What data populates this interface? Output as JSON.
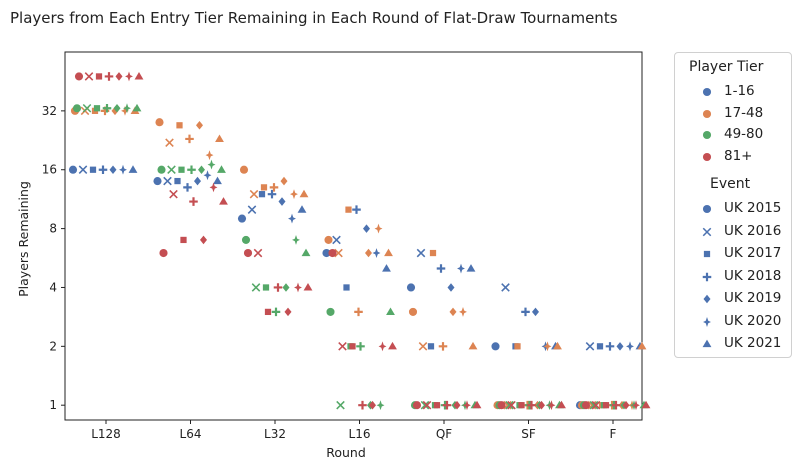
{
  "chart_data": {
    "type": "scatter",
    "title": "Players from Each Entry Tier Remaining in Each Round of Flat-Draw Tournaments",
    "xlabel": "Round",
    "ylabel": "Players Remaining",
    "y_scale": "log2",
    "ylim": [
      0.84,
      64
    ],
    "yticks": [
      1,
      2,
      4,
      8,
      16,
      32
    ],
    "grid": false,
    "legend_placement": "outside-right",
    "categories": [
      "L128",
      "L64",
      "L32",
      "L16",
      "QF",
      "SF",
      "F"
    ],
    "hue_title": "Player Tier",
    "style_title": "Event",
    "tiers": [
      {
        "name": "1-16",
        "color": "#4c72b0"
      },
      {
        "name": "17-48",
        "color": "#dd8452"
      },
      {
        "name": "49-80",
        "color": "#55a868"
      },
      {
        "name": "81+",
        "color": "#c44e52"
      }
    ],
    "events": [
      {
        "name": "UK 2015",
        "marker": "circle"
      },
      {
        "name": "UK 2016",
        "marker": "x"
      },
      {
        "name": "UK 2017",
        "marker": "square"
      },
      {
        "name": "UK 2018",
        "marker": "plus"
      },
      {
        "name": "UK 2019",
        "marker": "diamond"
      },
      {
        "name": "UK 2020",
        "marker": "star4"
      },
      {
        "name": "UK 2021",
        "marker": "triangle"
      }
    ],
    "series": [
      {
        "tier": "1-16",
        "event": "UK 2015",
        "values": [
          16,
          14,
          9,
          6,
          4,
          2,
          1
        ]
      },
      {
        "tier": "1-16",
        "event": "UK 2016",
        "values": [
          16,
          14,
          10,
          7,
          6,
          4,
          2
        ]
      },
      {
        "tier": "1-16",
        "event": "UK 2017",
        "values": [
          16,
          14,
          12,
          4,
          2,
          2,
          2
        ]
      },
      {
        "tier": "1-16",
        "event": "UK 2018",
        "values": [
          16,
          13,
          12,
          10,
          5,
          3,
          2
        ]
      },
      {
        "tier": "1-16",
        "event": "UK 2019",
        "values": [
          16,
          14,
          11,
          8,
          4,
          3,
          2
        ]
      },
      {
        "tier": "1-16",
        "event": "UK 2020",
        "values": [
          16,
          15,
          9,
          6,
          5,
          2,
          2
        ]
      },
      {
        "tier": "1-16",
        "event": "UK 2021",
        "values": [
          16,
          14,
          10,
          5,
          5,
          2,
          2
        ]
      },
      {
        "tier": "17-48",
        "event": "UK 2015",
        "values": [
          32,
          28,
          16,
          7,
          3,
          1,
          1
        ]
      },
      {
        "tier": "17-48",
        "event": "UK 2016",
        "values": [
          32,
          22,
          12,
          6,
          2,
          1,
          1
        ]
      },
      {
        "tier": "17-48",
        "event": "UK 2017",
        "values": [
          32,
          27,
          13,
          10,
          6,
          2,
          1
        ]
      },
      {
        "tier": "17-48",
        "event": "UK 2018",
        "values": [
          32,
          23,
          13,
          3,
          2,
          1,
          1
        ]
      },
      {
        "tier": "17-48",
        "event": "UK 2019",
        "values": [
          32,
          27,
          14,
          6,
          3,
          1,
          1
        ]
      },
      {
        "tier": "17-48",
        "event": "UK 2020",
        "values": [
          32,
          19,
          12,
          8,
          3,
          2,
          1
        ]
      },
      {
        "tier": "17-48",
        "event": "UK 2021",
        "values": [
          32,
          23,
          12,
          6,
          2,
          2,
          2
        ]
      },
      {
        "tier": "49-80",
        "event": "UK 2015",
        "values": [
          33,
          16,
          7,
          3,
          1,
          1,
          1
        ]
      },
      {
        "tier": "49-80",
        "event": "UK 2016",
        "values": [
          33,
          16,
          4,
          1,
          1,
          1,
          1
        ]
      },
      {
        "tier": "49-80",
        "event": "UK 2017",
        "values": [
          33,
          16,
          4,
          2,
          1,
          1,
          1
        ]
      },
      {
        "tier": "49-80",
        "event": "UK 2018",
        "values": [
          33,
          16,
          3,
          2,
          1,
          1,
          1
        ]
      },
      {
        "tier": "49-80",
        "event": "UK 2019",
        "values": [
          33,
          16,
          4,
          1,
          1,
          1,
          1
        ]
      },
      {
        "tier": "49-80",
        "event": "UK 2020",
        "values": [
          33,
          17,
          7,
          1,
          1,
          1,
          1
        ]
      },
      {
        "tier": "49-80",
        "event": "UK 2021",
        "values": [
          33,
          16,
          6,
          3,
          1,
          1,
          1
        ]
      },
      {
        "tier": "81+",
        "event": "UK 2015",
        "values": [
          48,
          6,
          6,
          6,
          1,
          1,
          1
        ]
      },
      {
        "tier": "81+",
        "event": "UK 2016",
        "values": [
          48,
          12,
          6,
          2,
          1,
          1,
          1
        ]
      },
      {
        "tier": "81+",
        "event": "UK 2017",
        "values": [
          48,
          7,
          3,
          2,
          1,
          1,
          1
        ]
      },
      {
        "tier": "81+",
        "event": "UK 2018",
        "values": [
          48,
          11,
          4,
          1,
          1,
          1,
          1
        ]
      },
      {
        "tier": "81+",
        "event": "UK 2019",
        "values": [
          48,
          7,
          3,
          1,
          1,
          1,
          1
        ]
      },
      {
        "tier": "81+",
        "event": "UK 2020",
        "values": [
          48,
          13,
          4,
          2,
          1,
          1,
          1
        ]
      },
      {
        "tier": "81+",
        "event": "UK 2021",
        "values": [
          48,
          11,
          4,
          2,
          1,
          1,
          1
        ]
      }
    ]
  }
}
